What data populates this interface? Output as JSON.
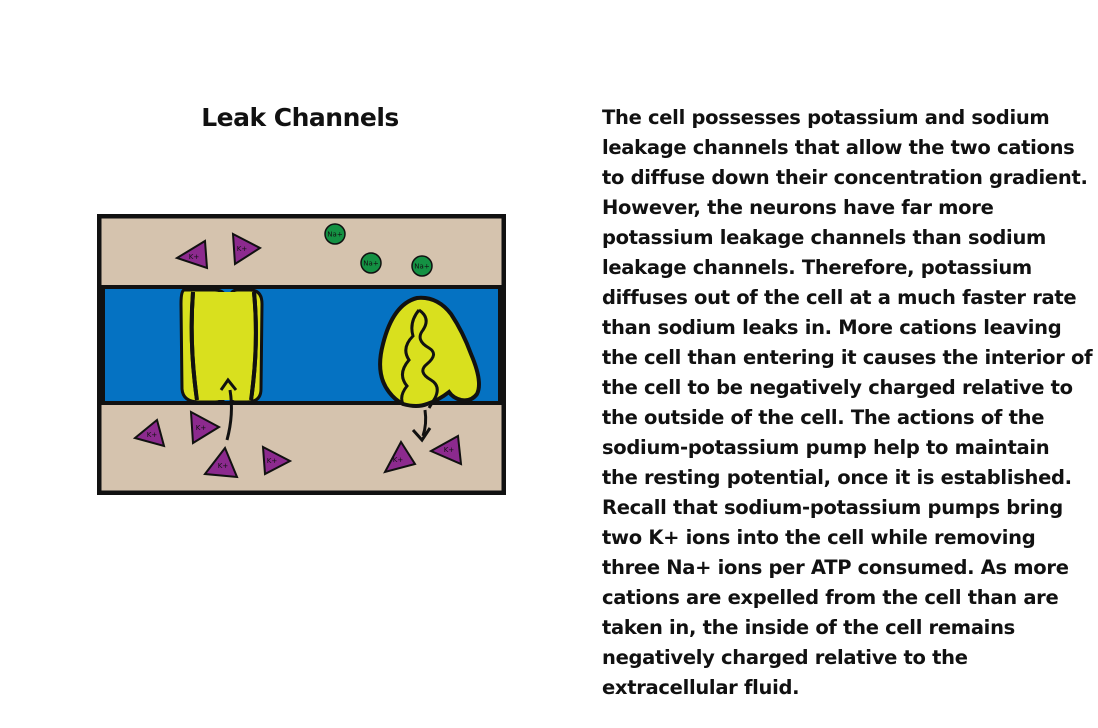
{
  "title": "Leak Channels",
  "diagram": {
    "colors": {
      "extracellular": "#d5c3ae",
      "membrane": "#0572c2",
      "channel": "#d9e01e",
      "potassium": "#8c2a8e",
      "sodium": "#149143",
      "outline": "#111111"
    },
    "sodium_ion_label": "Na+",
    "potassium_ion_label": "K+"
  },
  "paragraph_lines": [
    "The cell possesses potassium and sodium",
    "leakage channels that allow the two cations",
    "to diffuse down their concentration gradient.",
    "However, the neurons have far more",
    "potassium leakage channels than sodium",
    "leakage channels. Therefore, potassium",
    "diffuses out of the cell at a much faster rate",
    "than sodium leaks in. More cations leaving",
    "the cell than entering it causes the interior of",
    "the cell to be negatively charged relative to",
    "the outside of the cell. The actions of the",
    "sodium-potassium pump help to maintain",
    "the resting potential, once it is established.",
    "Recall that sodium-potassium pumps bring",
    "two K+ ions into the cell while removing",
    "three Na+ ions per ATP consumed. As more",
    "cations are expelled from the cell than are",
    "taken in, the inside of the cell remains",
    "negatively charged relative to the",
    "extracellular fluid."
  ]
}
